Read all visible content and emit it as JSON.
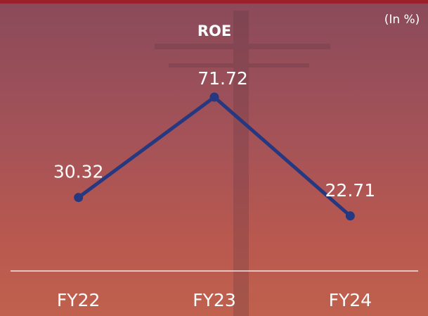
{
  "chart_data": {
    "type": "line",
    "title": "ROE",
    "unit": "(In %)",
    "categories": [
      "FY22",
      "FY23",
      "FY24"
    ],
    "series": [
      {
        "name": "ROE",
        "color": "#26387f",
        "values": [
          30.32,
          71.72,
          22.71
        ],
        "value_labels": [
          "30.32",
          "71.72",
          "22.71"
        ]
      }
    ]
  }
}
